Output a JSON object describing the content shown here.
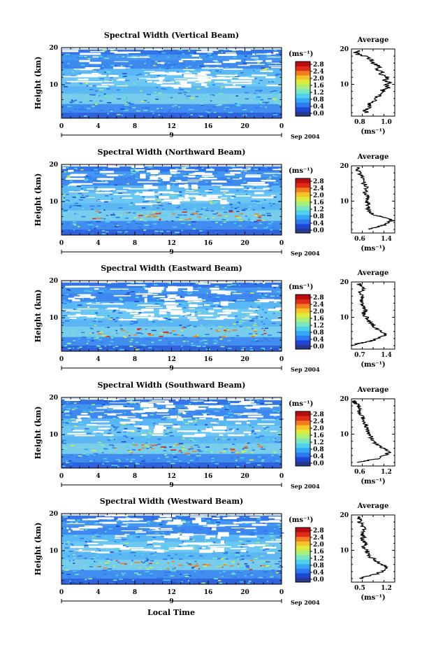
{
  "chart_data": {
    "type": "heatmap",
    "xlabel": "Local Time",
    "ylabel": "Height (km)",
    "x_ticks": [
      "0",
      "4",
      "8",
      "12",
      "16",
      "20",
      "0"
    ],
    "date_tick": "9",
    "date_label": "Sep 2004",
    "y_ticks": [
      "10",
      "20"
    ],
    "ylim": [
      1,
      20
    ],
    "xlim": [
      0,
      24
    ],
    "colorbar": {
      "unit_label": "(ms⁻¹)",
      "ticks": [
        "0.0",
        "0.4",
        "0.8",
        "1.2",
        "1.6",
        "2.0",
        "2.4",
        "2.8"
      ],
      "colors": [
        "#283a8e",
        "#1f47d6",
        "#2e78f2",
        "#35a7f6",
        "#4fd1ee",
        "#7ae6c0",
        "#a9ef7a",
        "#dcec3b",
        "#f6c42a",
        "#f27d1f",
        "#e02a1a",
        "#b80d10"
      ]
    },
    "average_title": "Average",
    "average_unit": "(ms⁻¹)",
    "panels": [
      {
        "title": "Spectral Width (Vertical Beam)",
        "avg_xlim": [
          0.8,
          1.0
        ],
        "avg_ticks": [
          "0.8",
          "1.0"
        ],
        "avg_profile": [
          [
            0.87,
            2
          ],
          [
            0.86,
            2.5
          ],
          [
            0.87,
            3
          ],
          [
            0.89,
            4
          ],
          [
            0.88,
            4.5
          ],
          [
            0.9,
            5
          ],
          [
            0.91,
            6
          ],
          [
            0.93,
            7
          ],
          [
            0.95,
            8
          ],
          [
            0.94,
            8.5
          ],
          [
            0.97,
            9
          ],
          [
            0.96,
            10
          ],
          [
            0.98,
            10.5
          ],
          [
            0.95,
            11
          ],
          [
            0.97,
            12
          ],
          [
            0.93,
            13
          ],
          [
            0.95,
            13.5
          ],
          [
            0.92,
            14
          ],
          [
            0.93,
            15
          ],
          [
            0.9,
            16
          ],
          [
            0.89,
            17
          ],
          [
            0.86,
            18
          ],
          [
            0.83,
            18.5
          ],
          [
            0.82,
            19
          ],
          [
            0.84,
            19.5
          ]
        ]
      },
      {
        "title": "Spectral Width (Northward Beam)",
        "avg_xlim": [
          0.6,
          1.4
        ],
        "avg_ticks": [
          "0.6",
          "1.4"
        ],
        "avg_profile": [
          [
            0.95,
            2
          ],
          [
            1.0,
            2.5
          ],
          [
            1.15,
            3
          ],
          [
            1.25,
            3.5
          ],
          [
            1.35,
            4.5
          ],
          [
            1.2,
            5.5
          ],
          [
            1.05,
            6
          ],
          [
            0.95,
            7
          ],
          [
            0.9,
            8
          ],
          [
            0.92,
            9
          ],
          [
            0.88,
            10
          ],
          [
            0.9,
            11
          ],
          [
            0.86,
            12
          ],
          [
            0.85,
            13
          ],
          [
            0.88,
            14
          ],
          [
            0.82,
            15
          ],
          [
            0.83,
            16
          ],
          [
            0.78,
            17
          ],
          [
            0.76,
            18
          ],
          [
            0.72,
            19
          ],
          [
            0.7,
            19.5
          ]
        ]
      },
      {
        "title": "Spectral Width (Eastward Beam)",
        "avg_xlim": [
          0.7,
          1.4
        ],
        "avg_ticks": [
          "0.7",
          "1.4"
        ],
        "avg_profile": [
          [
            0.72,
            2
          ],
          [
            0.78,
            2.5
          ],
          [
            0.95,
            3
          ],
          [
            1.05,
            3.5
          ],
          [
            1.12,
            4
          ],
          [
            1.25,
            5
          ],
          [
            1.18,
            6
          ],
          [
            1.08,
            7
          ],
          [
            1.05,
            8
          ],
          [
            0.98,
            9
          ],
          [
            0.95,
            10
          ],
          [
            0.9,
            11
          ],
          [
            0.92,
            12
          ],
          [
            0.88,
            13
          ],
          [
            0.9,
            14
          ],
          [
            0.86,
            15
          ],
          [
            0.9,
            16
          ],
          [
            0.85,
            17
          ],
          [
            0.88,
            18
          ],
          [
            0.84,
            19
          ],
          [
            0.82,
            19.5
          ]
        ]
      },
      {
        "title": "Spectral Width (Southward Beam)",
        "avg_xlim": [
          0.6,
          1.2
        ],
        "avg_ticks": [
          "0.6",
          "1.2"
        ],
        "avg_profile": [
          [
            0.7,
            2
          ],
          [
            0.8,
            2.5
          ],
          [
            0.95,
            3
          ],
          [
            1.05,
            4
          ],
          [
            1.15,
            5
          ],
          [
            1.05,
            6
          ],
          [
            0.95,
            7
          ],
          [
            0.9,
            8
          ],
          [
            0.88,
            9
          ],
          [
            0.84,
            10
          ],
          [
            0.82,
            11
          ],
          [
            0.8,
            12
          ],
          [
            0.79,
            13
          ],
          [
            0.76,
            14
          ],
          [
            0.77,
            15
          ],
          [
            0.72,
            16
          ],
          [
            0.7,
            17
          ],
          [
            0.69,
            18
          ],
          [
            0.65,
            19
          ],
          [
            0.64,
            19.5
          ]
        ]
      },
      {
        "title": "Spectral Width (Westward Beam)",
        "avg_xlim": [
          0.5,
          1.2
        ],
        "avg_ticks": [
          "0.5",
          "1.2"
        ],
        "avg_profile": [
          [
            0.65,
            2
          ],
          [
            0.72,
            2.5
          ],
          [
            0.85,
            3
          ],
          [
            1.0,
            4
          ],
          [
            1.1,
            5
          ],
          [
            1.0,
            6
          ],
          [
            0.9,
            7
          ],
          [
            0.82,
            8
          ],
          [
            0.78,
            9
          ],
          [
            0.74,
            10
          ],
          [
            0.7,
            11
          ],
          [
            0.72,
            12
          ],
          [
            0.68,
            13
          ],
          [
            0.7,
            14
          ],
          [
            0.66,
            15
          ],
          [
            0.7,
            16
          ],
          [
            0.67,
            17
          ],
          [
            0.64,
            18
          ],
          [
            0.62,
            19
          ],
          [
            0.63,
            19.5
          ]
        ]
      }
    ]
  }
}
